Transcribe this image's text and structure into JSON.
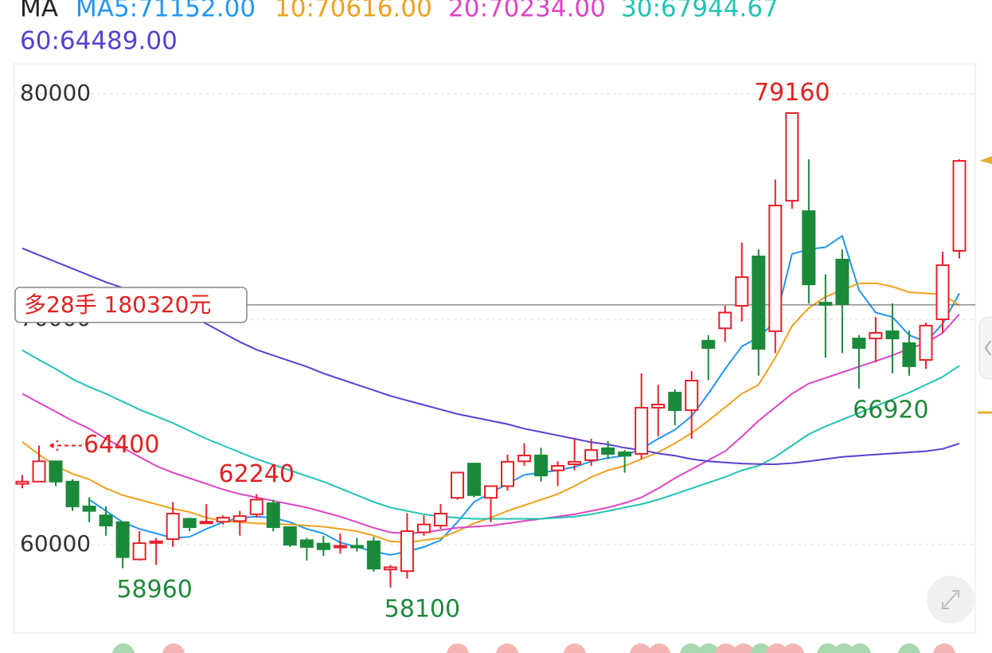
{
  "chart_data": {
    "type": "candlestick",
    "indicator": "MA",
    "ylim": [
      56080,
      81340
    ],
    "yticks": [
      60000,
      70000,
      80000
    ],
    "grid": true,
    "up_color": "#e8202a",
    "down_color": "#1a8a3a",
    "candles": [
      {
        "open": 62700,
        "high": 63100,
        "low": 62500,
        "close": 62800
      },
      {
        "open": 62800,
        "high": 64400,
        "low": 62800,
        "close": 63700,
        "high_label": "64400",
        "arrow": true
      },
      {
        "open": 63700,
        "high": 63700,
        "low": 62600,
        "close": 62800
      },
      {
        "open": 62800,
        "high": 62900,
        "low": 61500,
        "close": 61700
      },
      {
        "open": 61700,
        "high": 62100,
        "low": 61000,
        "close": 61500
      },
      {
        "open": 61300,
        "high": 61700,
        "low": 60400,
        "close": 60850
      },
      {
        "open": 61000,
        "high": 61000,
        "low": 58960,
        "close": 59450,
        "low_label": "58960"
      },
      {
        "open": 59350,
        "high": 60600,
        "low": 59300,
        "close": 60070
      },
      {
        "open": 60100,
        "high": 60300,
        "low": 59100,
        "close": 60150
      },
      {
        "open": 60250,
        "high": 61900,
        "low": 59900,
        "close": 61380
      },
      {
        "open": 61150,
        "high": 61200,
        "low": 60600,
        "close": 60780
      },
      {
        "open": 61000,
        "high": 61800,
        "low": 61000,
        "close": 61020
      },
      {
        "open": 61020,
        "high": 61300,
        "low": 60900,
        "close": 61200
      },
      {
        "open": 61050,
        "high": 61500,
        "low": 60400,
        "close": 61270
      },
      {
        "open": 61350,
        "high": 62240,
        "low": 61200,
        "close": 62000,
        "high_label": "62240"
      },
      {
        "open": 61840,
        "high": 62000,
        "low": 60600,
        "close": 60780
      },
      {
        "open": 60780,
        "high": 60800,
        "low": 59900,
        "close": 60000
      },
      {
        "open": 60200,
        "high": 60300,
        "low": 59300,
        "close": 59900
      },
      {
        "open": 60050,
        "high": 60400,
        "low": 59500,
        "close": 59800
      },
      {
        "open": 59900,
        "high": 60500,
        "low": 59600,
        "close": 59950
      },
      {
        "open": 59950,
        "high": 60300,
        "low": 59700,
        "close": 59900
      },
      {
        "open": 60150,
        "high": 60350,
        "low": 58800,
        "close": 58940
      },
      {
        "open": 58900,
        "high": 59100,
        "low": 58100,
        "close": 59000,
        "low_label": "58100"
      },
      {
        "open": 58830,
        "high": 61400,
        "low": 58500,
        "close": 60600
      },
      {
        "open": 60550,
        "high": 61300,
        "low": 60400,
        "close": 60900
      },
      {
        "open": 60850,
        "high": 61800,
        "low": 60700,
        "close": 61380
      },
      {
        "open": 62080,
        "high": 63200,
        "low": 62000,
        "close": 63200
      },
      {
        "open": 63600,
        "high": 63600,
        "low": 62100,
        "close": 62200
      },
      {
        "open": 62080,
        "high": 62600,
        "low": 61000,
        "close": 62600
      },
      {
        "open": 62600,
        "high": 64000,
        "low": 62400,
        "close": 63680
      },
      {
        "open": 63700,
        "high": 64500,
        "low": 63500,
        "close": 63960
      },
      {
        "open": 63960,
        "high": 64300,
        "low": 62800,
        "close": 63070
      },
      {
        "open": 63300,
        "high": 63700,
        "low": 62600,
        "close": 63500
      },
      {
        "open": 63570,
        "high": 64700,
        "low": 63300,
        "close": 63680
      },
      {
        "open": 63750,
        "high": 64700,
        "low": 63500,
        "close": 64200
      },
      {
        "open": 64280,
        "high": 64600,
        "low": 63800,
        "close": 64030
      },
      {
        "open": 64100,
        "high": 64200,
        "low": 63200,
        "close": 63950
      },
      {
        "open": 64030,
        "high": 67600,
        "low": 63800,
        "close": 66080
      },
      {
        "open": 66080,
        "high": 67100,
        "low": 64800,
        "close": 66220
      },
      {
        "open": 66750,
        "high": 66900,
        "low": 65300,
        "close": 65970
      },
      {
        "open": 65970,
        "high": 67700,
        "low": 64700,
        "close": 67280
      },
      {
        "open": 69050,
        "high": 69300,
        "low": 67300,
        "close": 68730
      },
      {
        "open": 69600,
        "high": 70600,
        "low": 69000,
        "close": 70300
      },
      {
        "open": 70600,
        "high": 73400,
        "low": 69900,
        "close": 71870
      },
      {
        "open": 72790,
        "high": 73100,
        "low": 67500,
        "close": 68690
      },
      {
        "open": 69470,
        "high": 76200,
        "low": 68500,
        "close": 75050
      },
      {
        "open": 75260,
        "high": 79160,
        "low": 74900,
        "close": 79150,
        "high_label": "79160"
      },
      {
        "open": 74800,
        "high": 77100,
        "low": 70700,
        "close": 71550
      },
      {
        "open": 70740,
        "high": 72000,
        "low": 68300,
        "close": 70640
      },
      {
        "open": 72650,
        "high": 73100,
        "low": 68500,
        "close": 70670
      },
      {
        "open": 69150,
        "high": 69300,
        "low": 66920,
        "close": 68730,
        "low_label": "66920"
      },
      {
        "open": 69150,
        "high": 70100,
        "low": 68100,
        "close": 69400
      },
      {
        "open": 69470,
        "high": 70700,
        "low": 67600,
        "close": 69150
      },
      {
        "open": 68940,
        "high": 69500,
        "low": 67500,
        "close": 67920
      },
      {
        "open": 68200,
        "high": 69850,
        "low": 67800,
        "close": 69720
      },
      {
        "open": 70000,
        "high": 73000,
        "low": 69400,
        "close": 72400
      },
      {
        "open": 73040,
        "high": 77100,
        "low": 72700,
        "close": 77030
      }
    ],
    "series": [
      {
        "name": "MA5:71152.00",
        "color": "#2196f3",
        "values": [
          null,
          null,
          null,
          null,
          62000,
          61500,
          61000,
          60700,
          60500,
          60300,
          60350,
          60700,
          61000,
          61200,
          61250,
          61200,
          61000,
          60700,
          60500,
          60100,
          59900,
          59700,
          59550,
          59700,
          59900,
          60200,
          61000,
          61900,
          62300,
          62700,
          63100,
          63200,
          63300,
          63450,
          63700,
          63850,
          63950,
          64250,
          64700,
          65100,
          65700,
          66700,
          67800,
          68800,
          69200,
          69900,
          72900,
          73100,
          73200,
          73700,
          71300,
          70300,
          70100,
          69300,
          69000,
          69800,
          71152
        ]
      },
      {
        "name": "10:70616.00",
        "color": "#f0a020",
        "values": [
          64560,
          64000,
          63500,
          63150,
          62900,
          62500,
          62200,
          62000,
          61800,
          61600,
          61450,
          61200,
          61050,
          61000,
          60950,
          60920,
          60900,
          60850,
          60800,
          60700,
          60600,
          60400,
          60150,
          60100,
          60200,
          60300,
          60600,
          60950,
          61200,
          61500,
          61750,
          62000,
          62250,
          62600,
          63000,
          63300,
          63500,
          63800,
          64100,
          64500,
          64950,
          65500,
          66100,
          66700,
          67100,
          68300,
          69700,
          70500,
          71000,
          71300,
          71600,
          71600,
          71450,
          71200,
          71150,
          71100,
          70616
        ]
      },
      {
        "name": "20:70234.00",
        "color": "#de44c4",
        "values": [
          66700,
          66300,
          65900,
          65500,
          65150,
          64700,
          64300,
          63900,
          63500,
          63200,
          62950,
          62700,
          62450,
          62250,
          62100,
          61950,
          61800,
          61650,
          61450,
          61250,
          61000,
          60750,
          60550,
          60500,
          60550,
          60650,
          60750,
          60800,
          60850,
          60950,
          61050,
          61150,
          61250,
          61350,
          61500,
          61650,
          61850,
          62100,
          62500,
          62950,
          63350,
          63750,
          64150,
          64800,
          65500,
          66100,
          66700,
          67150,
          67400,
          67650,
          67900,
          68150,
          68400,
          68700,
          68950,
          69400,
          70234
        ]
      },
      {
        "name": "30:67944.67",
        "color": "#22c3b4",
        "values": [
          68630,
          68200,
          67800,
          67350,
          67000,
          66700,
          66350,
          66000,
          65700,
          65400,
          65050,
          64700,
          64400,
          64100,
          63800,
          63550,
          63300,
          63050,
          62800,
          62500,
          62200,
          61900,
          61650,
          61500,
          61350,
          61250,
          61200,
          61150,
          61150,
          61150,
          61150,
          61150,
          61200,
          61250,
          61350,
          61500,
          61650,
          61800,
          62000,
          62250,
          62500,
          62750,
          63000,
          63300,
          63500,
          63900,
          64400,
          64900,
          65250,
          65550,
          65850,
          66150,
          66450,
          66750,
          67100,
          67450,
          67944.67
        ]
      },
      {
        "name": "60:64489.00",
        "color": "#5a3fd4",
        "values": [
          73150,
          72850,
          72550,
          72250,
          71950,
          71650,
          71400,
          71100,
          70800,
          70500,
          70150,
          69800,
          69400,
          69000,
          68650,
          68400,
          68150,
          67900,
          67600,
          67350,
          67100,
          66850,
          66600,
          66400,
          66200,
          66000,
          65800,
          65650,
          65500,
          65350,
          65150,
          65000,
          64850,
          64700,
          64550,
          64450,
          64300,
          64200,
          64050,
          63950,
          63800,
          63700,
          63650,
          63600,
          63580,
          63570,
          63620,
          63700,
          63800,
          63900,
          63950,
          64000,
          64050,
          64100,
          64150,
          64250,
          64489
        ]
      }
    ],
    "position": {
      "label": "多28手  180320元",
      "price": 70640
    }
  }
}
